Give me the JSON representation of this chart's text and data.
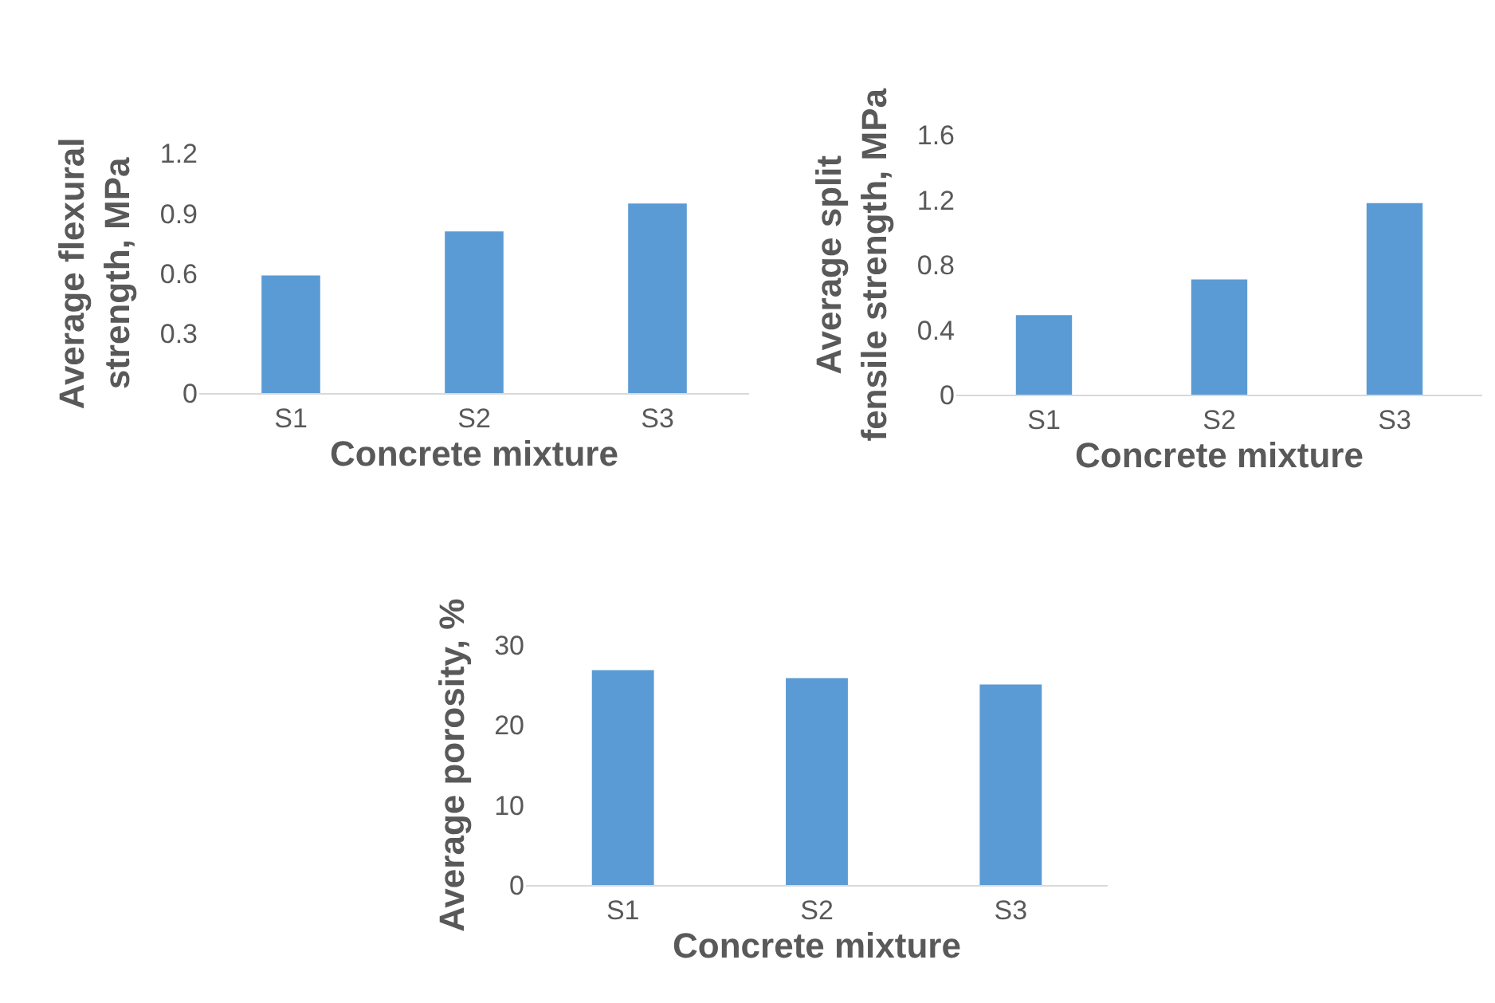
{
  "chart_data": [
    {
      "type": "bar",
      "categories": [
        "S1",
        "S2",
        "S3"
      ],
      "values": [
        0.59,
        0.81,
        0.95
      ],
      "color": "#5b9bd5",
      "ylim": [
        0,
        1.2
      ],
      "yticks": [
        0,
        0.3,
        0.6,
        0.9,
        1.2
      ],
      "xlabel": "Concrete mixture",
      "ylabel": "Average flexural strength, MPa"
    },
    {
      "type": "bar",
      "categories": [
        "S1",
        "S2",
        "S3"
      ],
      "values": [
        0.49,
        0.71,
        1.18
      ],
      "color": "#5b9bd5",
      "ylim": [
        0,
        1.6
      ],
      "yticks": [
        0,
        0.4,
        0.8,
        1.2,
        1.6
      ],
      "xlabel": "Concrete mixture",
      "ylabel": "Average split fensile strength, MPa"
    },
    {
      "type": "bar",
      "categories": [
        "S1",
        "S2",
        "S3"
      ],
      "values": [
        26.9,
        25.9,
        25.1
      ],
      "color": "#5b9bd5",
      "ylim": [
        0,
        30
      ],
      "yticks": [
        0,
        10,
        20,
        30
      ],
      "xlabel": "Concrete mixture",
      "ylabel": "Average porosity, %"
    }
  ]
}
